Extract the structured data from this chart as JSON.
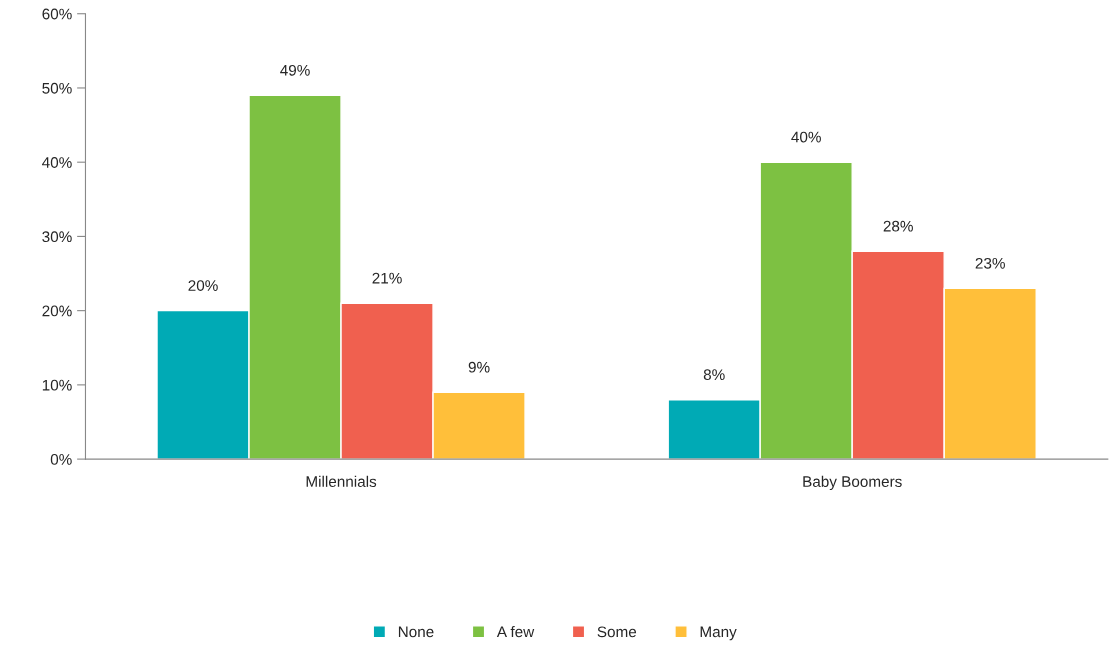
{
  "chart_data": {
    "type": "bar",
    "categories": [
      "Millennials",
      "Baby Boomers"
    ],
    "series": [
      {
        "name": "None",
        "color": "#00aab5",
        "values": [
          20,
          8
        ],
        "value_labels": [
          "20%",
          "8%"
        ]
      },
      {
        "name": "A few",
        "color": "#7dc142",
        "values": [
          49,
          40
        ],
        "value_labels": [
          "49%",
          "40%"
        ]
      },
      {
        "name": "Some",
        "color": "#f0604f",
        "values": [
          21,
          28
        ],
        "value_labels": [
          "21%",
          "28%"
        ]
      },
      {
        "name": "Many",
        "color": "#ffbf3a",
        "values": [
          9,
          23
        ],
        "value_labels": [
          "9%",
          "23%"
        ]
      }
    ],
    "ylim": [
      0,
      60
    ],
    "yticks": [
      {
        "value": 0,
        "label": "0%"
      },
      {
        "value": 10,
        "label": "10%"
      },
      {
        "value": 20,
        "label": "20%"
      },
      {
        "value": 30,
        "label": "30%"
      },
      {
        "value": 40,
        "label": "40%"
      },
      {
        "value": 50,
        "label": "50%"
      },
      {
        "value": 60,
        "label": "60%"
      }
    ],
    "grid": false,
    "legend": "bottom"
  }
}
